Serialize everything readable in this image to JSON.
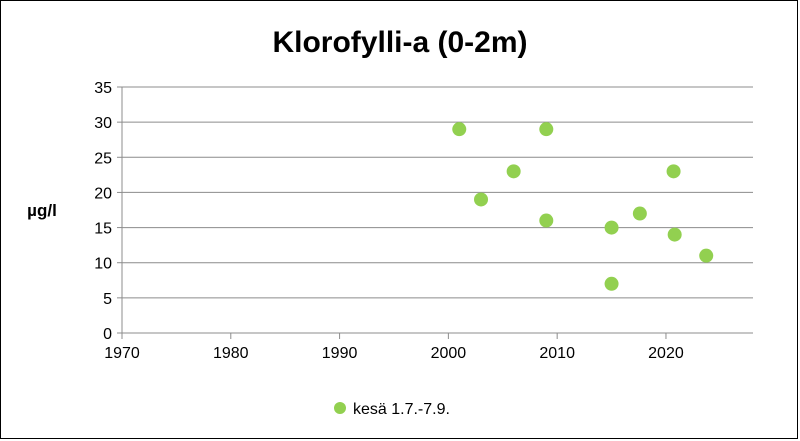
{
  "chart_data": {
    "type": "scatter",
    "title": "Klorofylli-a (0-2m)",
    "xlabel": "",
    "ylabel": "µg/l",
    "xlim": [
      1970,
      2028
    ],
    "ylim": [
      0,
      35
    ],
    "x_ticks": [
      1970,
      1980,
      1990,
      2000,
      2010,
      2020
    ],
    "y_ticks": [
      0,
      5,
      10,
      15,
      20,
      25,
      30,
      35
    ],
    "grid": true,
    "legend_position": "bottom",
    "series": [
      {
        "name": "kesä 1.7.-7.9.",
        "color": "#92d050",
        "points": [
          {
            "x": 2001,
            "y": 29
          },
          {
            "x": 2003,
            "y": 19
          },
          {
            "x": 2006,
            "y": 23
          },
          {
            "x": 2009,
            "y": 29
          },
          {
            "x": 2009,
            "y": 16
          },
          {
            "x": 2015,
            "y": 15
          },
          {
            "x": 2015,
            "y": 7
          },
          {
            "x": 2017.6,
            "y": 17
          },
          {
            "x": 2020.7,
            "y": 23
          },
          {
            "x": 2020.8,
            "y": 14
          },
          {
            "x": 2023.7,
            "y": 11
          }
        ]
      }
    ]
  }
}
